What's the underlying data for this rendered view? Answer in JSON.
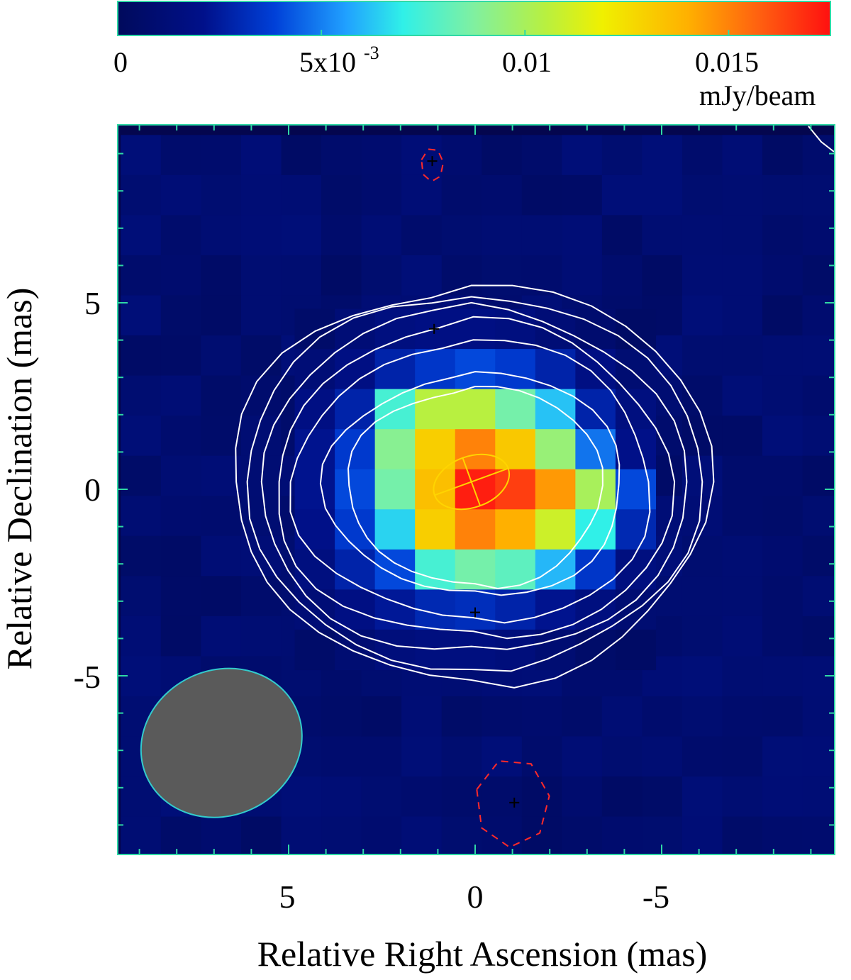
{
  "chart_data": {
    "type": "heatmap",
    "title": "",
    "xlabel": "Relative Right Ascension (mas)",
    "ylabel": "Relative Declination (mas)",
    "xlim": [
      9.8,
      -9.8
    ],
    "ylim": [
      -9.8,
      9.8
    ],
    "x_ticks": [
      5,
      0,
      -5
    ],
    "x_tick_labels": [
      "5",
      "0",
      "-5"
    ],
    "y_ticks": [
      5,
      0,
      -5
    ],
    "y_tick_labels": [
      "5",
      "0",
      "-5"
    ],
    "colorbar": {
      "min": 0,
      "max": 0.0175,
      "unit": "mJy/beam",
      "ticks": [
        0,
        0.005,
        0.01,
        0.015
      ],
      "tick_labels": [
        "0",
        "5x10",
        "0.01",
        "0.015"
      ],
      "tick_exponent": "-3"
    },
    "pixel_size_mas": 1.075,
    "grid_cols": [
      4.3,
      3.225,
      2.15,
      1.075,
      0,
      -1.075,
      -2.15,
      -3.225,
      -4.3
    ],
    "grid_rows": [
      4.3,
      3.225,
      2.15,
      1.075,
      0,
      -1.075,
      -2.15,
      -3.225,
      -4.3
    ],
    "values": [
      [
        0.0006,
        0.0012,
        0.0016,
        0.0018,
        0.0018,
        0.0016,
        0.0012,
        0.0008,
        0.0004
      ],
      [
        0.0012,
        0.0018,
        0.0028,
        0.0035,
        0.004,
        0.0036,
        0.0028,
        0.0018,
        0.001
      ],
      [
        0.0018,
        0.0028,
        0.0075,
        0.0105,
        0.0105,
        0.0085,
        0.0062,
        0.0028,
        0.0016
      ],
      [
        0.0022,
        0.0036,
        0.009,
        0.013,
        0.015,
        0.0132,
        0.0095,
        0.0048,
        0.002
      ],
      [
        0.0022,
        0.004,
        0.0085,
        0.0135,
        0.0172,
        0.0165,
        0.0145,
        0.01,
        0.004
      ],
      [
        0.002,
        0.0036,
        0.0065,
        0.013,
        0.015,
        0.014,
        0.011,
        0.007,
        0.003
      ],
      [
        0.0016,
        0.0028,
        0.004,
        0.0075,
        0.0085,
        0.008,
        0.006,
        0.0035,
        0.0016
      ],
      [
        0.0012,
        0.0018,
        0.0024,
        0.003,
        0.0032,
        0.0028,
        0.0022,
        0.0016,
        0.001
      ],
      [
        0.0006,
        0.001,
        0.0014,
        0.0016,
        0.0016,
        0.0014,
        0.001,
        0.0006,
        0.0004
      ]
    ],
    "background_value": 0.0004,
    "contours": [
      {
        "level": 1,
        "radius_x": 6.4,
        "radius_y": 5.4,
        "center": [
          0.1,
          0.2
        ]
      },
      {
        "level": 2,
        "radius_x": 6.1,
        "radius_y": 5.1,
        "center": [
          0.1,
          0.2
        ]
      },
      {
        "level": 3,
        "radius_x": 5.7,
        "radius_y": 4.7,
        "center": [
          0.1,
          0.2
        ]
      },
      {
        "level": 4,
        "radius_x": 5.3,
        "radius_y": 4.3,
        "center": [
          0.05,
          0.2
        ]
      },
      {
        "level": 5,
        "radius_x": 4.8,
        "radius_y": 3.8,
        "center": [
          0.05,
          0.2
        ]
      },
      {
        "level": 6,
        "radius_x": 4.0,
        "radius_y": 3.0,
        "center": [
          0.0,
          0.15
        ]
      },
      {
        "level": 7,
        "radius_x": 3.4,
        "radius_y": 2.7,
        "center": [
          0.0,
          0.1
        ]
      }
    ],
    "negative_contours": [
      {
        "center": [
          -1.0,
          -8.4
        ],
        "radius_x": 1.0,
        "radius_y": 1.2
      },
      {
        "center": [
          1.15,
          8.7
        ],
        "radius_x": 0.3,
        "radius_y": 0.45
      }
    ],
    "model_component": {
      "center": [
        0.1,
        0.2
      ],
      "major": 2.0,
      "minor": 1.3,
      "pa_deg": -20
    },
    "crosses": [
      {
        "x": 1.1,
        "y": 4.3
      },
      {
        "x": 0.0,
        "y": -3.3
      },
      {
        "x": -1.05,
        "y": -8.4
      },
      {
        "x": 1.15,
        "y": 8.8
      }
    ],
    "beam": {
      "center": [
        6.8,
        -6.8
      ],
      "major": 4.4,
      "minor": 3.9,
      "pa_deg": -25,
      "color": "#5a5a5a",
      "edge": "#33cccc"
    },
    "colors": {
      "axis_frame": "#2fd9a5",
      "contour": "#ffffff",
      "negative_contour": "#ff2a2a",
      "model": "#ffd400",
      "cross": "#000000",
      "background": "#04064e"
    }
  }
}
